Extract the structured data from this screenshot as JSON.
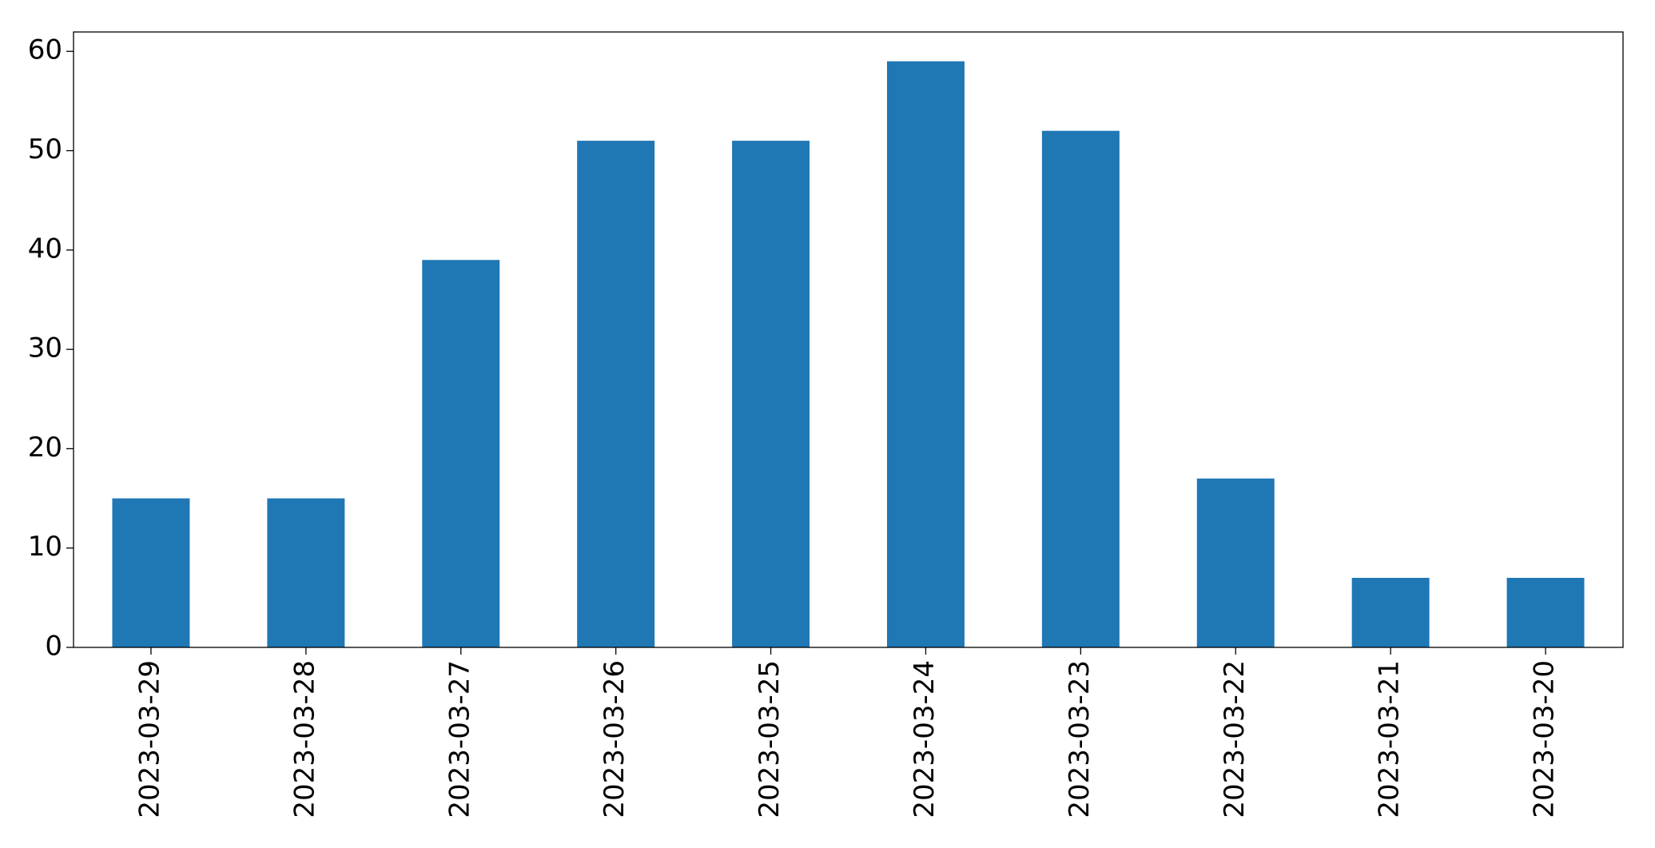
{
  "chart_data": {
    "type": "bar",
    "categories": [
      "2023-03-29",
      "2023-03-28",
      "2023-03-27",
      "2023-03-26",
      "2023-03-25",
      "2023-03-24",
      "2023-03-23",
      "2023-03-22",
      "2023-03-21",
      "2023-03-20"
    ],
    "values": [
      15,
      15,
      39,
      51,
      51,
      59,
      52,
      17,
      7,
      7
    ],
    "color": "#1f77b4",
    "ylim": [
      0,
      61.95
    ],
    "yticks": [
      0,
      10,
      20,
      30,
      40,
      50,
      60
    ],
    "grid": false
  }
}
